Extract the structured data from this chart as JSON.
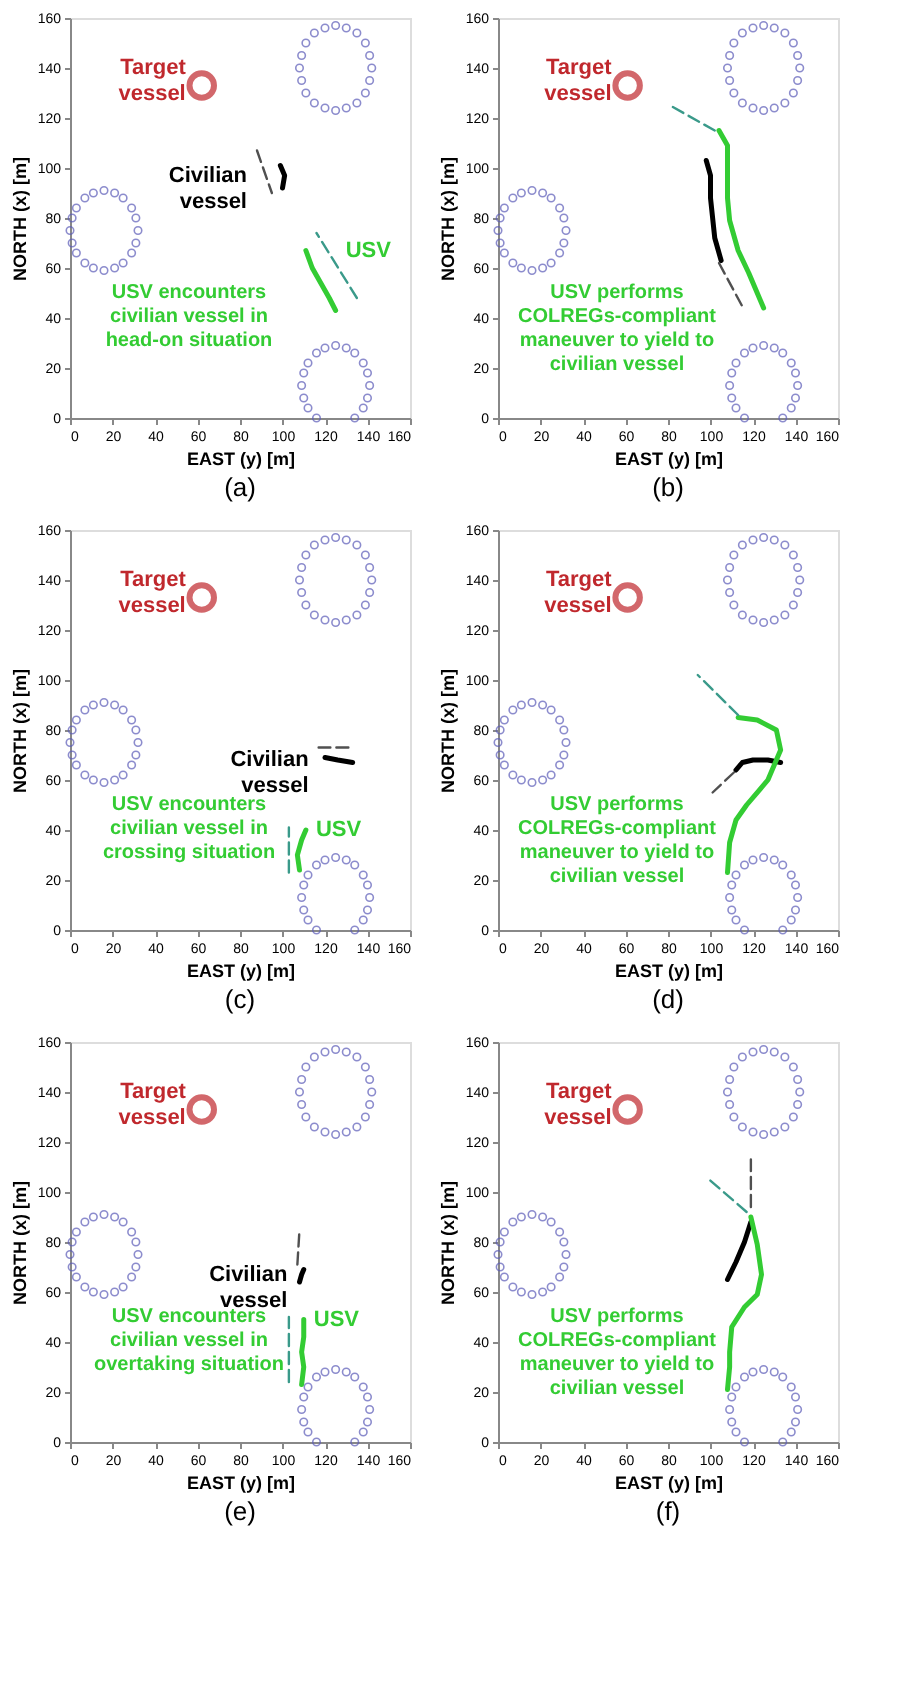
{
  "chart_data": [
    {
      "type": "line",
      "title": "(a)",
      "xlabel": "EAST (y) [m]",
      "ylabel": "NORTH (x) [m]",
      "xlim": [
        0,
        160
      ],
      "ylim": [
        0,
        160
      ],
      "xticks": [
        0,
        20,
        40,
        60,
        80,
        100,
        120,
        140,
        160
      ],
      "yticks": [
        0,
        20,
        40,
        60,
        80,
        100,
        120,
        140,
        160
      ],
      "annotations": [
        "USV encounters civilian vessel in head-on situation"
      ],
      "series": [
        {
          "type": "scatter",
          "color": "#5c5cb8",
          "marker": "circle",
          "x": [
            142,
            141,
            139,
            135,
            130,
            125,
            120,
            115,
            111,
            109,
            108,
            109,
            111,
            115,
            120,
            125,
            130,
            135,
            139,
            141,
            32,
            31,
            29,
            25,
            21,
            16,
            11,
            7,
            3,
            1,
            0,
            1,
            3,
            7,
            11,
            16,
            21,
            25,
            29,
            31,
            141,
            140,
            138,
            134,
            130,
            125,
            120,
            116,
            112,
            110,
            109,
            110,
            112,
            116,
            134,
            138,
            140
          ],
          "values": [
            140,
            145,
            150,
            154,
            156,
            157,
            156,
            154,
            150,
            145,
            140,
            135,
            130,
            126,
            124,
            123,
            124,
            126,
            130,
            135,
            75,
            80,
            84,
            88,
            90,
            91,
            90,
            88,
            84,
            80,
            75,
            70,
            66,
            62,
            60,
            59,
            60,
            62,
            66,
            70,
            13,
            18,
            22,
            26,
            28,
            29,
            28,
            26,
            22,
            18,
            13,
            8,
            4,
            0,
            0,
            4,
            8
          ]
        },
        {
          "type": "scatter",
          "name": "Target vessel",
          "color": "#c0282d",
          "marker": "circle",
          "x": [
            62
          ],
          "values": [
            133
          ]
        },
        {
          "name": "Civilian vessel",
          "color": "#000000",
          "marker": "none",
          "x": [
            99,
            101,
            100
          ],
          "values": [
            101,
            97,
            92
          ]
        },
        {
          "color": "#505050",
          "marker": "none",
          "line_style": "dashed",
          "x": [
            88,
            95
          ],
          "values": [
            107,
            90
          ]
        },
        {
          "name": "USV",
          "color": "#33cc33",
          "marker": "none",
          "x": [
            111,
            114,
            118,
            122,
            125
          ],
          "values": [
            67,
            60,
            54,
            48,
            43
          ]
        },
        {
          "color": "#3a9a8a",
          "marker": "none",
          "line_style": "dashed",
          "x": [
            135,
            116
          ],
          "values": [
            48,
            74
          ]
        }
      ]
    },
    {
      "type": "line",
      "title": "(b)",
      "xlabel": "EAST (y) [m]",
      "ylabel": "NORTH (x) [m]",
      "xlim": [
        0,
        160
      ],
      "ylim": [
        0,
        160
      ],
      "xticks": [
        0,
        20,
        40,
        60,
        80,
        100,
        120,
        140,
        160
      ],
      "yticks": [
        0,
        20,
        40,
        60,
        80,
        100,
        120,
        140,
        160
      ],
      "annotations": [
        "USV performs COLREGs-compliant maneuver to yield to civilian vessel"
      ],
      "series": [
        {
          "type": "scatter",
          "color": "#5c5cb8",
          "marker": "circle",
          "x": [
            142,
            141,
            139,
            135,
            130,
            125,
            120,
            115,
            111,
            109,
            108,
            109,
            111,
            115,
            120,
            125,
            130,
            135,
            139,
            141,
            32,
            31,
            29,
            25,
            21,
            16,
            11,
            7,
            3,
            1,
            0,
            1,
            3,
            7,
            11,
            16,
            21,
            25,
            29,
            31,
            141,
            140,
            138,
            134,
            130,
            125,
            120,
            116,
            112,
            110,
            109,
            110,
            112,
            116,
            134,
            138,
            140
          ],
          "values": [
            140,
            145,
            150,
            154,
            156,
            157,
            156,
            154,
            150,
            145,
            140,
            135,
            130,
            126,
            124,
            123,
            124,
            126,
            130,
            135,
            75,
            80,
            84,
            88,
            90,
            91,
            90,
            88,
            84,
            80,
            75,
            70,
            66,
            62,
            60,
            59,
            60,
            62,
            66,
            70,
            13,
            18,
            22,
            26,
            28,
            29,
            28,
            26,
            22,
            18,
            13,
            8,
            4,
            0,
            0,
            4,
            8
          ]
        },
        {
          "type": "scatter",
          "name": "Target vessel",
          "color": "#c0282d",
          "marker": "circle",
          "x": [
            61
          ],
          "values": [
            133
          ]
        },
        {
          "color": "#000000",
          "marker": "none",
          "x": [
            98,
            100,
            100,
            101,
            102,
            104,
            105
          ],
          "values": [
            103,
            97,
            88,
            80,
            72,
            66,
            63
          ]
        },
        {
          "color": "#505050",
          "marker": "none",
          "line_style": "dashed",
          "x": [
            104,
            116
          ],
          "values": [
            62,
            43
          ]
        },
        {
          "color": "#33cc33",
          "marker": "none",
          "x": [
            104,
            108,
            108,
            108,
            109,
            113,
            118,
            125
          ],
          "values": [
            115,
            109,
            97,
            88,
            79,
            67,
            58,
            44
          ]
        },
        {
          "color": "#3a9a8a",
          "marker": "none",
          "line_style": "dashed",
          "x": [
            102,
            81
          ],
          "values": [
            115,
            125
          ]
        }
      ]
    },
    {
      "type": "line",
      "title": "(c)",
      "xlabel": "EAST (y) [m]",
      "ylabel": "NORTH (x) [m]",
      "xlim": [
        0,
        160
      ],
      "ylim": [
        0,
        160
      ],
      "xticks": [
        0,
        20,
        40,
        60,
        80,
        100,
        120,
        140,
        160
      ],
      "yticks": [
        0,
        20,
        40,
        60,
        80,
        100,
        120,
        140,
        160
      ],
      "annotations": [
        "USV encounters civilian vessel in crossing situation"
      ],
      "series": [
        {
          "type": "scatter",
          "color": "#5c5cb8",
          "marker": "circle",
          "x": [
            142,
            141,
            139,
            135,
            130,
            125,
            120,
            115,
            111,
            109,
            108,
            109,
            111,
            115,
            120,
            125,
            130,
            135,
            139,
            141,
            32,
            31,
            29,
            25,
            21,
            16,
            11,
            7,
            3,
            1,
            0,
            1,
            3,
            7,
            11,
            16,
            21,
            25,
            29,
            31,
            141,
            140,
            138,
            134,
            130,
            125,
            120,
            116,
            112,
            110,
            109,
            110,
            112,
            116,
            134,
            138,
            140
          ],
          "values": [
            140,
            145,
            150,
            154,
            156,
            157,
            156,
            154,
            150,
            145,
            140,
            135,
            130,
            126,
            124,
            123,
            124,
            126,
            130,
            135,
            75,
            80,
            84,
            88,
            90,
            91,
            90,
            88,
            84,
            80,
            75,
            70,
            66,
            62,
            60,
            59,
            60,
            62,
            66,
            70,
            13,
            18,
            22,
            26,
            28,
            29,
            28,
            26,
            22,
            18,
            13,
            8,
            4,
            0,
            0,
            4,
            8
          ]
        },
        {
          "type": "scatter",
          "name": "Target vessel",
          "color": "#c0282d",
          "marker": "circle",
          "x": [
            62
          ],
          "values": [
            133
          ]
        },
        {
          "name": "Civilian vessel",
          "color": "#000000",
          "marker": "none",
          "x": [
            120,
            126,
            133
          ],
          "values": [
            69,
            68,
            67
          ]
        },
        {
          "color": "#505050",
          "marker": "none",
          "line_style": "dashed",
          "x": [
            131,
            117
          ],
          "values": [
            73,
            73
          ]
        },
        {
          "name": "USV",
          "color": "#33cc33",
          "marker": "none",
          "x": [
            108,
            107,
            109,
            111
          ],
          "values": [
            24,
            30,
            36,
            40
          ]
        },
        {
          "color": "#3a9a8a",
          "marker": "none",
          "line_style": "dashed",
          "x": [
            103,
            103
          ],
          "values": [
            23,
            41
          ]
        }
      ]
    },
    {
      "type": "line",
      "title": "(d)",
      "xlabel": "EAST (y) [m]",
      "ylabel": "NORTH (x) [m]",
      "xlim": [
        0,
        160
      ],
      "ylim": [
        0,
        160
      ],
      "xticks": [
        0,
        20,
        40,
        60,
        80,
        100,
        120,
        140,
        160
      ],
      "yticks": [
        0,
        20,
        40,
        60,
        80,
        100,
        120,
        140,
        160
      ],
      "annotations": [
        "USV performs COLREGs-compliant maneuver to yield to civilian vessel"
      ],
      "series": [
        {
          "type": "scatter",
          "color": "#5c5cb8",
          "marker": "circle",
          "x": [
            142,
            141,
            139,
            135,
            130,
            125,
            120,
            115,
            111,
            109,
            108,
            109,
            111,
            115,
            120,
            125,
            130,
            135,
            139,
            141,
            32,
            31,
            29,
            25,
            21,
            16,
            11,
            7,
            3,
            1,
            0,
            1,
            3,
            7,
            11,
            16,
            21,
            25,
            29,
            31,
            141,
            140,
            138,
            134,
            130,
            125,
            120,
            116,
            112,
            110,
            109,
            110,
            112,
            116,
            134,
            138,
            140
          ],
          "values": [
            140,
            145,
            150,
            154,
            156,
            157,
            156,
            154,
            150,
            145,
            140,
            135,
            130,
            126,
            124,
            123,
            124,
            126,
            130,
            135,
            75,
            80,
            84,
            88,
            90,
            91,
            90,
            88,
            84,
            80,
            75,
            70,
            66,
            62,
            60,
            59,
            60,
            62,
            66,
            70,
            13,
            18,
            22,
            26,
            28,
            29,
            28,
            26,
            22,
            18,
            13,
            8,
            4,
            0,
            0,
            4,
            8
          ]
        },
        {
          "type": "scatter",
          "name": "Target vessel",
          "color": "#c0282d",
          "marker": "circle",
          "x": [
            61
          ],
          "values": [
            133
          ]
        },
        {
          "color": "#000000",
          "marker": "none",
          "x": [
            112,
            115,
            120,
            127,
            133
          ],
          "values": [
            64,
            67,
            68,
            68,
            67
          ]
        },
        {
          "color": "#505050",
          "marker": "none",
          "line_style": "dashed",
          "x": [
            111,
            101
          ],
          "values": [
            63,
            55
          ]
        },
        {
          "color": "#33cc33",
          "marker": "none",
          "x": [
            108,
            109,
            112,
            117,
            127,
            133,
            131,
            122,
            113
          ],
          "values": [
            23,
            35,
            44,
            50,
            60,
            72,
            80,
            84,
            85
          ]
        },
        {
          "color": "#3a9a8a",
          "marker": "none",
          "line_style": "dashed",
          "x": [
            113,
            94
          ],
          "values": [
            86,
            102
          ]
        }
      ]
    },
    {
      "type": "line",
      "title": "(e)",
      "xlabel": "EAST (y) [m]",
      "ylabel": "NORTH (x) [m]",
      "xlim": [
        0,
        160
      ],
      "ylim": [
        0,
        160
      ],
      "xticks": [
        0,
        20,
        40,
        60,
        80,
        100,
        120,
        140,
        160
      ],
      "yticks": [
        0,
        20,
        40,
        60,
        80,
        100,
        120,
        140,
        160
      ],
      "annotations": [
        "USV encounters civilian vessel in overtaking situation"
      ],
      "series": [
        {
          "type": "scatter",
          "color": "#5c5cb8",
          "marker": "circle",
          "x": [
            142,
            141,
            139,
            135,
            130,
            125,
            120,
            115,
            111,
            109,
            108,
            109,
            111,
            115,
            120,
            125,
            130,
            135,
            139,
            141,
            32,
            31,
            29,
            25,
            21,
            16,
            11,
            7,
            3,
            1,
            0,
            1,
            3,
            7,
            11,
            16,
            21,
            25,
            29,
            31,
            141,
            140,
            138,
            134,
            130,
            125,
            120,
            116,
            112,
            110,
            109,
            110,
            112,
            116,
            134,
            138,
            140
          ],
          "values": [
            140,
            145,
            150,
            154,
            156,
            157,
            156,
            154,
            150,
            145,
            140,
            135,
            130,
            126,
            124,
            123,
            124,
            126,
            130,
            135,
            75,
            80,
            84,
            88,
            90,
            91,
            90,
            88,
            84,
            80,
            75,
            70,
            66,
            62,
            60,
            59,
            60,
            62,
            66,
            70,
            13,
            18,
            22,
            26,
            28,
            29,
            28,
            26,
            22,
            18,
            13,
            8,
            4,
            0,
            0,
            4,
            8
          ]
        },
        {
          "type": "scatter",
          "name": "Target vessel",
          "color": "#c0282d",
          "marker": "circle",
          "x": [
            62
          ],
          "values": [
            133
          ]
        },
        {
          "name": "Civilian vessel",
          "color": "#000000",
          "marker": "none",
          "x": [
            110,
            109,
            108
          ],
          "values": [
            69,
            67,
            64
          ]
        },
        {
          "color": "#505050",
          "marker": "none",
          "line_style": "dashed",
          "x": [
            107,
            108
          ],
          "values": [
            71,
            85
          ]
        },
        {
          "name": "USV",
          "color": "#33cc33",
          "marker": "none",
          "x": [
            109,
            110,
            109,
            110,
            110
          ],
          "values": [
            23,
            30,
            36,
            42,
            49
          ]
        },
        {
          "color": "#3a9a8a",
          "marker": "none",
          "line_style": "dashed",
          "x": [
            103,
            103
          ],
          "values": [
            24,
            50
          ]
        }
      ]
    },
    {
      "type": "line",
      "title": "(f)",
      "xlabel": "EAST (y) [m]",
      "ylabel": "NORTH (x) [m]",
      "xlim": [
        0,
        160
      ],
      "ylim": [
        0,
        160
      ],
      "xticks": [
        0,
        20,
        40,
        60,
        80,
        100,
        120,
        140,
        160
      ],
      "yticks": [
        0,
        20,
        40,
        60,
        80,
        100,
        120,
        140,
        160
      ],
      "annotations": [
        "USV performs COLREGs-compliant maneuver to yield to civilian vessel"
      ],
      "series": [
        {
          "type": "scatter",
          "color": "#5c5cb8",
          "marker": "circle",
          "x": [
            142,
            141,
            139,
            135,
            130,
            125,
            120,
            115,
            111,
            109,
            108,
            109,
            111,
            115,
            120,
            125,
            130,
            135,
            139,
            141,
            32,
            31,
            29,
            25,
            21,
            16,
            11,
            7,
            3,
            1,
            0,
            1,
            3,
            7,
            11,
            16,
            21,
            25,
            29,
            31,
            141,
            140,
            138,
            134,
            130,
            125,
            120,
            116,
            112,
            110,
            109,
            110,
            112,
            116,
            134,
            138,
            140
          ],
          "values": [
            140,
            145,
            150,
            154,
            156,
            157,
            156,
            154,
            150,
            145,
            140,
            135,
            130,
            126,
            124,
            123,
            124,
            126,
            130,
            135,
            75,
            80,
            84,
            88,
            90,
            91,
            90,
            88,
            84,
            80,
            75,
            70,
            66,
            62,
            60,
            59,
            60,
            62,
            66,
            70,
            13,
            18,
            22,
            26,
            28,
            29,
            28,
            26,
            22,
            18,
            13,
            8,
            4,
            0,
            0,
            4,
            8
          ]
        },
        {
          "type": "scatter",
          "name": "Target vessel",
          "color": "#c0282d",
          "marker": "circle",
          "x": [
            61
          ],
          "values": [
            133
          ]
        },
        {
          "color": "#000000",
          "marker": "none",
          "x": [
            108,
            112,
            116,
            119
          ],
          "values": [
            65,
            72,
            80,
            88
          ]
        },
        {
          "color": "#505050",
          "marker": "none",
          "line_style": "dashed",
          "x": [
            119,
            119
          ],
          "values": [
            94,
            113
          ]
        },
        {
          "color": "#33cc33",
          "marker": "none",
          "x": [
            108,
            109,
            109,
            110,
            116,
            122,
            124,
            122,
            119
          ],
          "values": [
            21,
            30,
            36,
            46,
            54,
            59,
            67,
            79,
            90
          ]
        },
        {
          "color": "#3a9a8a",
          "marker": "none",
          "line_style": "dashed",
          "x": [
            117,
            98
          ],
          "values": [
            92,
            106
          ]
        }
      ]
    }
  ]
}
